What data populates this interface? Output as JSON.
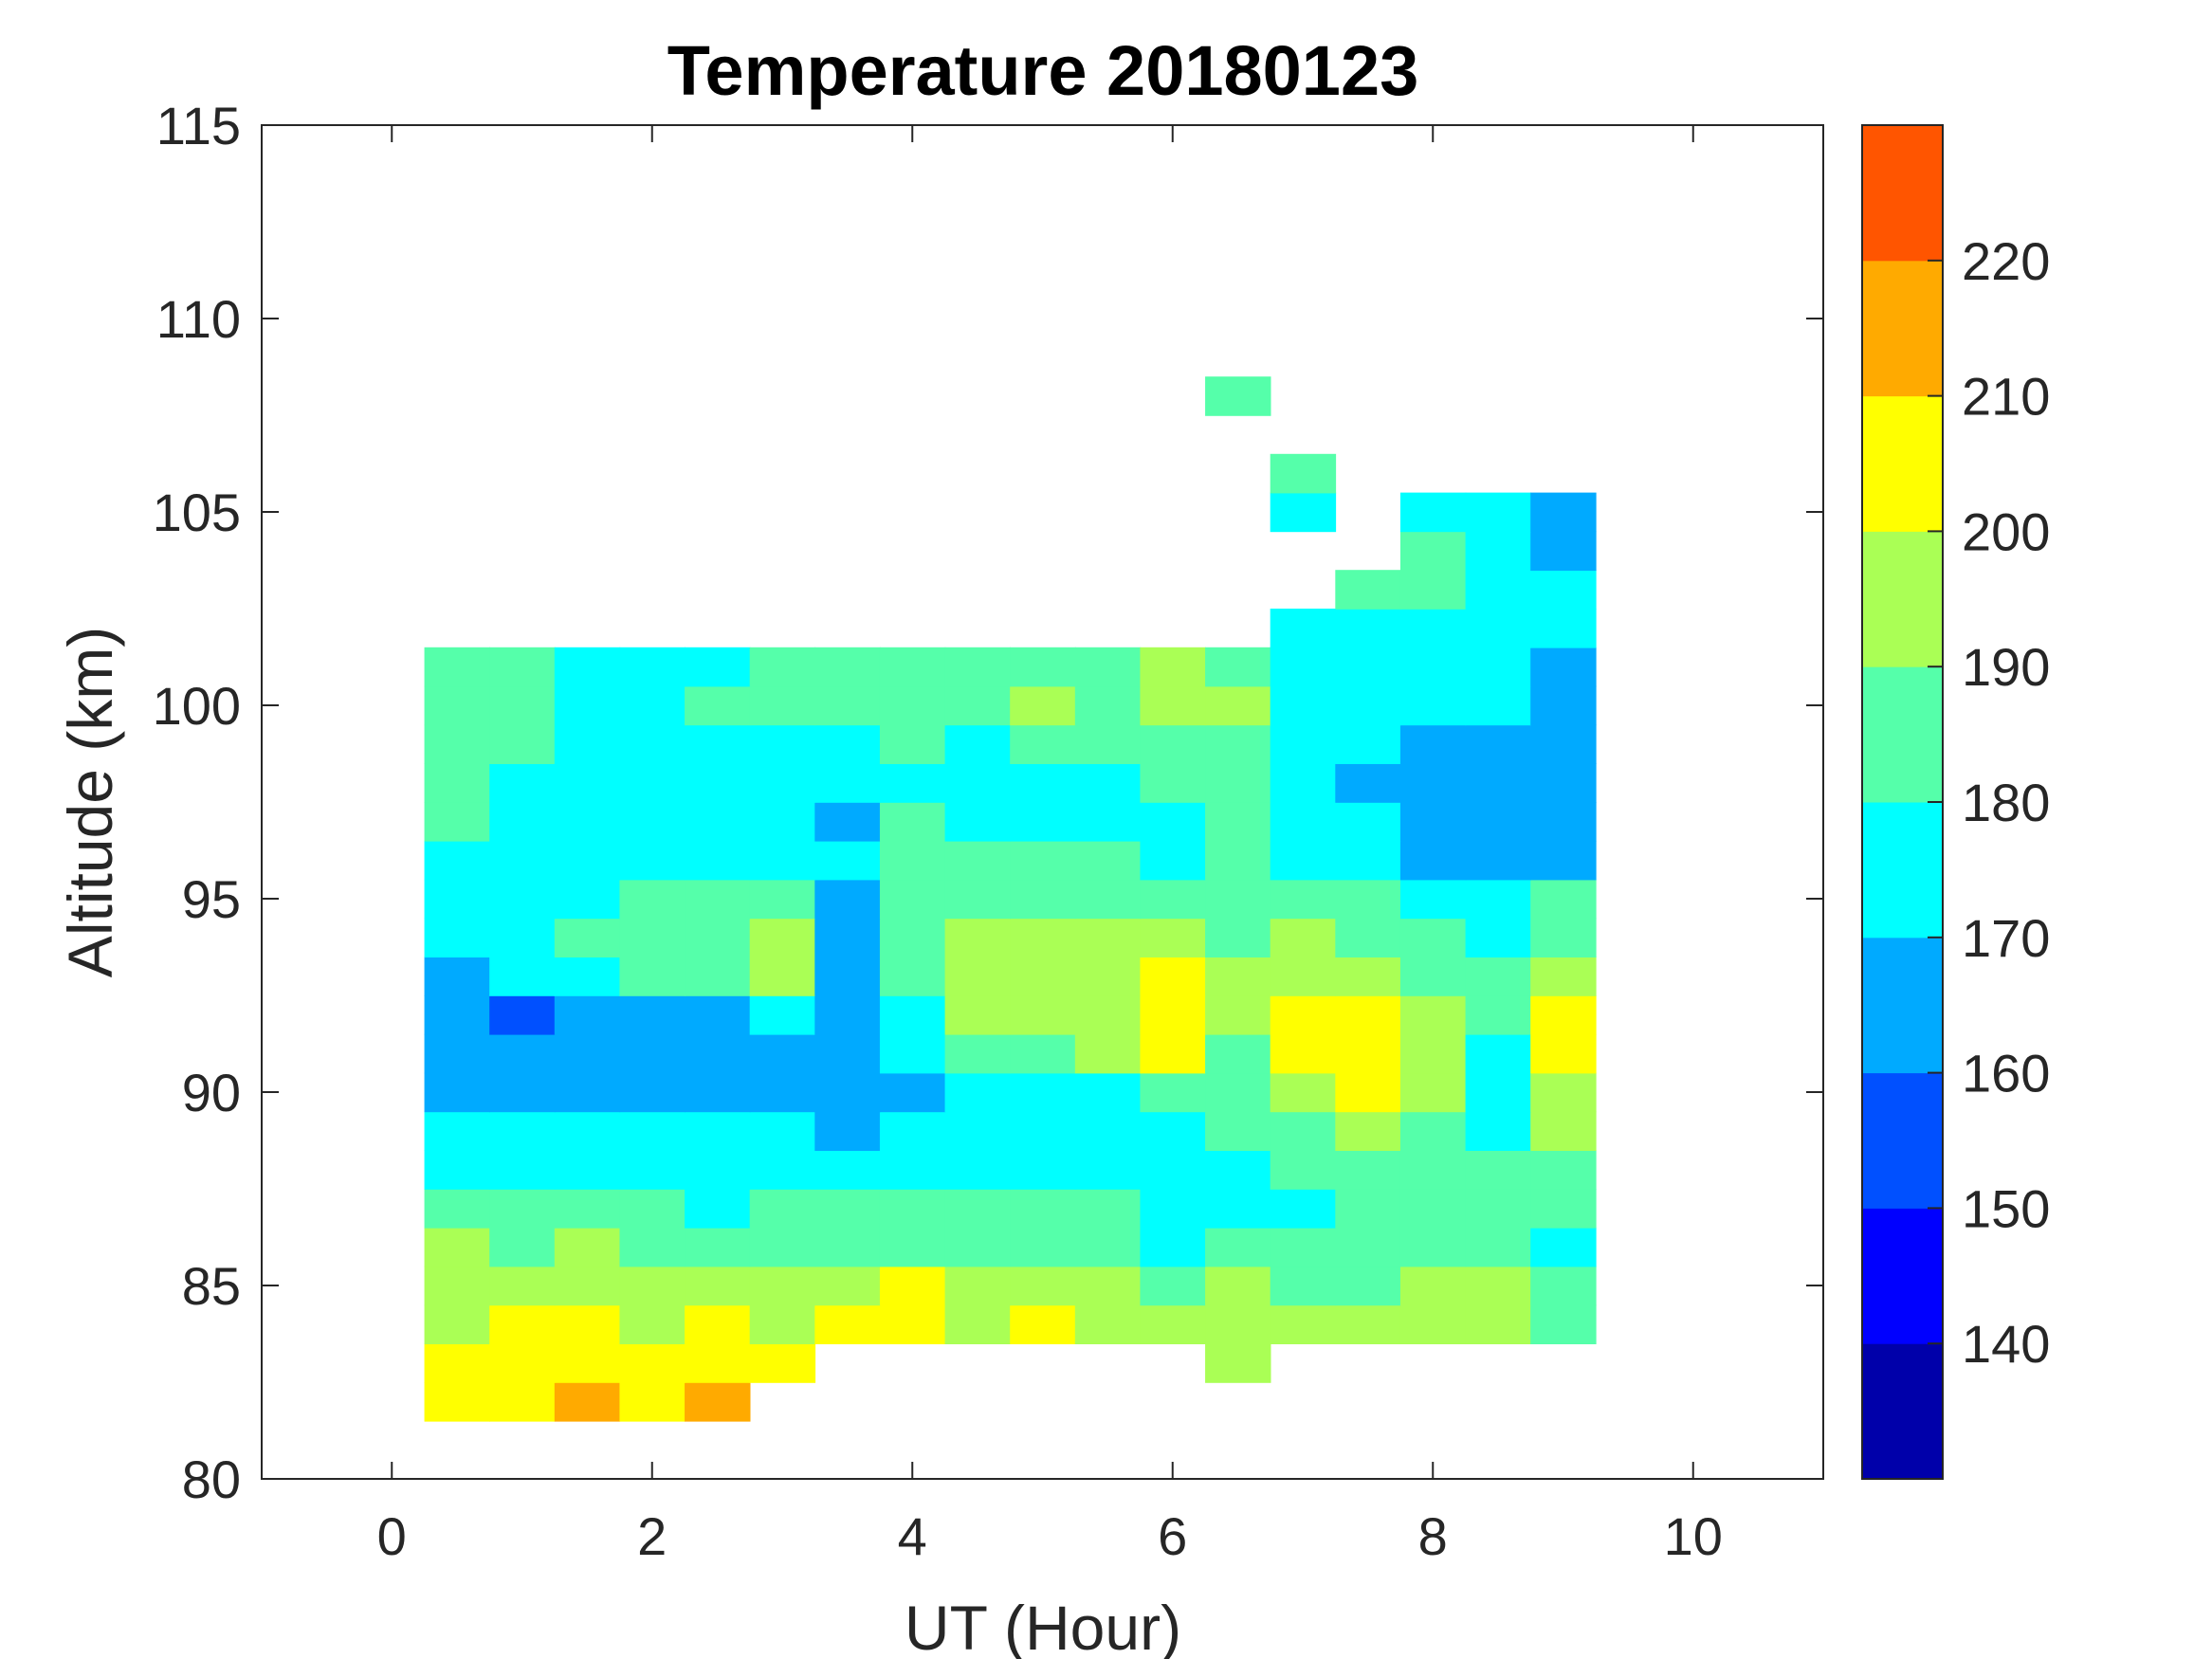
{
  "chart_data": {
    "type": "heatmap",
    "title": "Temperature 20180123",
    "xlabel": "UT (Hour)",
    "ylabel": "Altitude (km)",
    "xlim": [
      -1,
      11
    ],
    "ylim": [
      80,
      115
    ],
    "xticks": [
      0,
      2,
      4,
      6,
      8,
      10
    ],
    "yticks": [
      80,
      85,
      90,
      95,
      100,
      105,
      110,
      115
    ],
    "colorbar": {
      "range": [
        130,
        230
      ],
      "ticks": [
        140,
        150,
        160,
        170,
        180,
        190,
        200,
        210,
        220
      ],
      "levels": [
        130,
        140,
        150,
        160,
        170,
        180,
        190,
        200,
        210,
        220,
        230
      ],
      "colors": [
        "#0000aa",
        "#0000ff",
        "#0050ff",
        "#00aaff",
        "#00ffff",
        "#55ffaa",
        "#aaff55",
        "#ffff00",
        "#ffaa00",
        "#ff5500"
      ]
    },
    "x": [
      0.5,
      1.0,
      1.5,
      2.0,
      2.5,
      3.0,
      3.5,
      4.0,
      4.5,
      5.0,
      5.5,
      6.0,
      6.5,
      7.0,
      7.5,
      8.0,
      8.5,
      9.0
    ],
    "y": [
      82,
      83,
      84,
      85,
      86,
      87,
      88,
      89,
      90,
      91,
      92,
      93,
      94,
      95,
      96,
      97,
      98,
      99,
      100,
      101,
      102,
      103,
      104,
      105,
      106,
      107,
      108
    ],
    "z": [
      [
        205,
        205,
        215,
        205,
        215,
        null,
        null,
        null,
        null,
        null,
        null,
        null,
        null,
        null,
        null,
        null,
        null,
        null
      ],
      [
        205,
        205,
        205,
        205,
        205,
        205,
        null,
        null,
        null,
        null,
        null,
        null,
        195,
        null,
        null,
        null,
        null,
        null
      ],
      [
        195,
        205,
        205,
        195,
        205,
        195,
        205,
        205,
        195,
        205,
        195,
        195,
        195,
        195,
        195,
        195,
        195,
        185
      ],
      [
        195,
        195,
        195,
        195,
        195,
        195,
        195,
        205,
        195,
        195,
        195,
        185,
        195,
        185,
        185,
        195,
        195,
        185
      ],
      [
        195,
        185,
        195,
        185,
        185,
        185,
        185,
        185,
        185,
        185,
        185,
        175,
        185,
        185,
        185,
        185,
        185,
        175
      ],
      [
        185,
        185,
        185,
        185,
        175,
        185,
        185,
        185,
        185,
        185,
        185,
        175,
        175,
        175,
        185,
        185,
        185,
        185
      ],
      [
        175,
        175,
        175,
        175,
        175,
        175,
        175,
        175,
        175,
        175,
        175,
        175,
        175,
        185,
        185,
        185,
        185,
        185
      ],
      [
        175,
        175,
        175,
        175,
        175,
        175,
        165,
        175,
        175,
        175,
        175,
        175,
        185,
        185,
        195,
        185,
        175,
        195
      ],
      [
        165,
        165,
        165,
        165,
        165,
        165,
        165,
        165,
        175,
        175,
        175,
        185,
        185,
        195,
        205,
        195,
        175,
        195
      ],
      [
        165,
        165,
        165,
        165,
        165,
        165,
        165,
        175,
        185,
        185,
        195,
        205,
        185,
        205,
        205,
        195,
        175,
        205
      ],
      [
        165,
        155,
        165,
        165,
        165,
        175,
        165,
        175,
        195,
        195,
        195,
        205,
        195,
        205,
        205,
        195,
        185,
        205
      ],
      [
        165,
        175,
        175,
        185,
        185,
        195,
        165,
        185,
        195,
        195,
        195,
        205,
        195,
        195,
        195,
        185,
        185,
        195
      ],
      [
        175,
        175,
        185,
        185,
        185,
        195,
        165,
        185,
        195,
        195,
        195,
        195,
        185,
        195,
        185,
        185,
        175,
        185
      ],
      [
        175,
        175,
        175,
        185,
        185,
        185,
        165,
        185,
        185,
        185,
        185,
        185,
        185,
        185,
        185,
        175,
        175,
        185
      ],
      [
        175,
        175,
        175,
        175,
        175,
        175,
        175,
        185,
        185,
        185,
        185,
        175,
        185,
        175,
        175,
        165,
        165,
        165
      ],
      [
        185,
        175,
        175,
        175,
        175,
        175,
        165,
        185,
        175,
        175,
        175,
        175,
        185,
        175,
        175,
        165,
        165,
        165
      ],
      [
        185,
        175,
        175,
        175,
        175,
        175,
        175,
        175,
        175,
        175,
        175,
        185,
        185,
        175,
        165,
        165,
        165,
        165
      ],
      [
        185,
        185,
        175,
        175,
        175,
        175,
        175,
        185,
        175,
        185,
        185,
        185,
        185,
        175,
        175,
        165,
        165,
        165
      ],
      [
        185,
        185,
        175,
        175,
        185,
        185,
        185,
        185,
        185,
        195,
        185,
        195,
        195,
        175,
        175,
        175,
        175,
        165
      ],
      [
        185,
        185,
        175,
        175,
        175,
        185,
        185,
        185,
        185,
        185,
        185,
        195,
        185,
        175,
        175,
        175,
        175,
        165
      ],
      [
        null,
        null,
        null,
        null,
        null,
        null,
        null,
        null,
        null,
        null,
        null,
        null,
        null,
        175,
        175,
        175,
        175,
        175
      ],
      [
        null,
        null,
        null,
        null,
        null,
        null,
        null,
        null,
        null,
        null,
        null,
        null,
        null,
        null,
        185,
        185,
        175,
        175
      ],
      [
        null,
        null,
        null,
        null,
        null,
        null,
        null,
        null,
        null,
        null,
        null,
        null,
        null,
        null,
        null,
        185,
        175,
        165
      ],
      [
        null,
        null,
        null,
        null,
        null,
        null,
        null,
        null,
        null,
        null,
        null,
        null,
        null,
        175,
        null,
        175,
        175,
        165
      ],
      [
        null,
        null,
        null,
        null,
        null,
        null,
        null,
        null,
        null,
        null,
        null,
        null,
        null,
        185,
        null,
        null,
        null,
        null
      ],
      [
        null,
        null,
        null,
        null,
        null,
        null,
        null,
        null,
        null,
        null,
        null,
        null,
        null,
        null,
        null,
        null,
        null,
        null
      ],
      [
        null,
        null,
        null,
        null,
        null,
        null,
        null,
        null,
        null,
        null,
        null,
        null,
        185,
        null,
        null,
        null,
        null,
        null
      ]
    ],
    "grid": false,
    "legend": "colorbar-right"
  }
}
